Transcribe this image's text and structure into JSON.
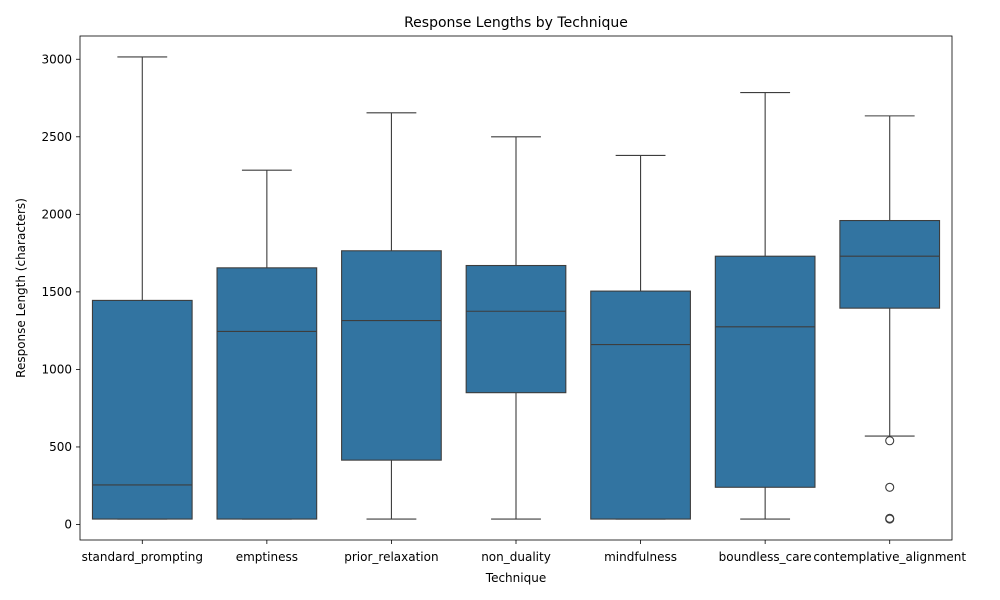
{
  "chart_data": {
    "type": "box",
    "title": "Response Lengths by Technique",
    "xlabel": "Technique",
    "ylabel": "Response Length (characters)",
    "ylim": [
      -100,
      3150
    ],
    "yticks": [
      0,
      500,
      1000,
      1500,
      2000,
      2500,
      3000
    ],
    "grid": false,
    "box_color": "#3274a1",
    "line_color": "#3d3d3d",
    "categories": [
      "standard_prompting",
      "emptiness",
      "prior_relaxation",
      "non_duality",
      "mindfulness",
      "boundless_care",
      "contemplative_alignment"
    ],
    "boxes": [
      {
        "category": "standard_prompting",
        "whisker_low": 35,
        "q1": 35,
        "median": 255,
        "q3": 1445,
        "whisker_high": 3015,
        "outliers": []
      },
      {
        "category": "emptiness",
        "whisker_low": 35,
        "q1": 35,
        "median": 1245,
        "q3": 1655,
        "whisker_high": 2285,
        "outliers": []
      },
      {
        "category": "prior_relaxation",
        "whisker_low": 35,
        "q1": 415,
        "median": 1315,
        "q3": 1765,
        "whisker_high": 2655,
        "outliers": []
      },
      {
        "category": "non_duality",
        "whisker_low": 35,
        "q1": 850,
        "median": 1375,
        "q3": 1670,
        "whisker_high": 2500,
        "outliers": []
      },
      {
        "category": "mindfulness",
        "whisker_low": 35,
        "q1": 35,
        "median": 1160,
        "q3": 1505,
        "whisker_high": 2380,
        "outliers": []
      },
      {
        "category": "boundless_care",
        "whisker_low": 35,
        "q1": 240,
        "median": 1275,
        "q3": 1730,
        "whisker_high": 2785,
        "outliers": []
      },
      {
        "category": "contemplative_alignment",
        "whisker_low": 570,
        "q1": 1395,
        "median": 1730,
        "q3": 1960,
        "whisker_high": 2635,
        "outliers": [
          540,
          240,
          40,
          35
        ]
      }
    ]
  }
}
